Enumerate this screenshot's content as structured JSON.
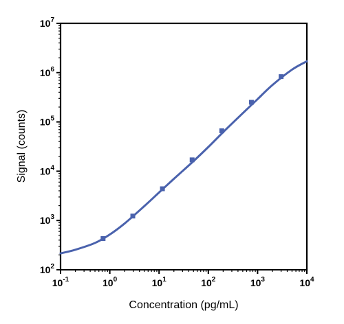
{
  "chart_data": {
    "type": "scatter",
    "title": "",
    "xlabel": "Concentration (pg/mL)",
    "ylabel": "Signal (counts)",
    "x_scale": "log",
    "y_scale": "log",
    "xlim": [
      0.1,
      10000
    ],
    "ylim": [
      100,
      10000000
    ],
    "x_ticks": [
      {
        "base": "10",
        "exp": "-1"
      },
      {
        "base": "10",
        "exp": "0"
      },
      {
        "base": "10",
        "exp": "1"
      },
      {
        "base": "10",
        "exp": "2"
      },
      {
        "base": "10",
        "exp": "3"
      },
      {
        "base": "10",
        "exp": "4"
      }
    ],
    "y_ticks": [
      {
        "base": "10",
        "exp": "2"
      },
      {
        "base": "10",
        "exp": "3"
      },
      {
        "base": "10",
        "exp": "4"
      },
      {
        "base": "10",
        "exp": "5"
      },
      {
        "base": "10",
        "exp": "6"
      },
      {
        "base": "10",
        "exp": "7"
      }
    ],
    "grid": false,
    "legend": "none",
    "series": [
      {
        "x": [
          0.73,
          2.93,
          11.7,
          46.9,
          187.5,
          750,
          3000
        ],
        "y": [
          430,
          1230,
          4400,
          17000,
          66000,
          250000,
          830000
        ],
        "color": "#4a62ad",
        "marker": "square",
        "fit": {
          "model": "4PL",
          "curve_x": [
            0.1,
            0.2,
            0.5,
            1,
            2,
            5,
            10,
            20,
            50,
            100,
            200,
            500,
            1000,
            2000,
            5000,
            10000
          ],
          "curve_y": [
            215,
            255,
            350,
            520,
            870,
            1950,
            3700,
            7000,
            16000,
            31000,
            62000,
            150000,
            290000,
            560000,
            1150000,
            1700000
          ]
        }
      }
    ]
  }
}
